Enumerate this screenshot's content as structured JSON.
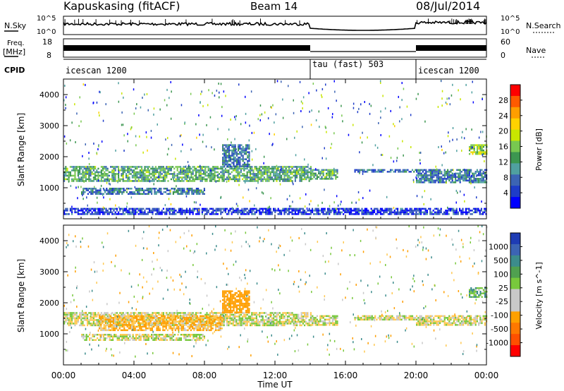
{
  "header": {
    "station": "Kapuskasing (fitACF)",
    "beam": "Beam 14",
    "date": "08/Jul/2014"
  },
  "strip_panels": {
    "nsky": {
      "label": "N.Sky",
      "left_ticks": [
        "10^5",
        "10^0"
      ],
      "right_label": "N.Search",
      "right_ticks": [
        "10^5",
        "10^0"
      ]
    },
    "freq": {
      "label_line1": "Freq.",
      "label_line2": "[MHz]",
      "left_ticks": [
        "18",
        "8"
      ],
      "right_label": "Nave",
      "right_ticks": [
        "60",
        "0"
      ]
    },
    "cpid": {
      "label": "CPID",
      "segments": [
        {
          "label": "icescan 1200",
          "start_hour": 0,
          "end_hour": 14
        },
        {
          "label": "tau (fast) 503",
          "start_hour": 14,
          "end_hour": 20
        },
        {
          "label": "icescan 1200",
          "start_hour": 20,
          "end_hour": 24
        }
      ]
    }
  },
  "power_panel": {
    "ylabel": "Slant Range [km]",
    "yticks": [
      "4000",
      "3000",
      "2000",
      "1000"
    ],
    "colorbar_label": "Power [dB]",
    "colorbar_ticks": [
      "28",
      "24",
      "20",
      "16",
      "12",
      "8",
      "4"
    ],
    "colorbar_colors": [
      "#ff0000",
      "#ff5a00",
      "#ff9e00",
      "#ffd200",
      "#c8e600",
      "#78c850",
      "#3c9650",
      "#50a0a0",
      "#3c64b4",
      "#1e3cc8",
      "#0000ff"
    ]
  },
  "velocity_panel": {
    "ylabel": "Slant Range [km]",
    "yticks": [
      "4000",
      "3000",
      "2000",
      "1000"
    ],
    "colorbar_label": "Velocity [m s^-1]",
    "colorbar_ticks": [
      "1000",
      "500",
      "100",
      "25",
      "-25",
      "-100",
      "-500",
      "-1000"
    ],
    "colorbar_colors": [
      "#1e3cb4",
      "#3c64b4",
      "#3c8c8c",
      "#50a050",
      "#78c83c",
      "#c8c8c8",
      "#c8c8c8",
      "#ffa000",
      "#ff7800",
      "#ff5000",
      "#ff0000"
    ]
  },
  "x_axis": {
    "label": "Time UT",
    "ticks": [
      "00:00",
      "04:00",
      "08:00",
      "12:00",
      "16:00",
      "20:00",
      "00:00"
    ]
  },
  "chart_data": [
    {
      "type": "heatmap",
      "title": "Power [dB]",
      "xlabel": "Time UT",
      "ylabel": "Slant Range [km]",
      "x_range_hours": [
        0,
        24
      ],
      "ylim": [
        0,
        4500
      ],
      "color_range": [
        0,
        30
      ],
      "bands": [
        {
          "start_hour": 0,
          "end_hour": 14,
          "range_min_km": 1200,
          "range_max_km": 1700,
          "power_db": 12
        },
        {
          "start_hour": 1,
          "end_hour": 8,
          "range_min_km": 800,
          "range_max_km": 1000,
          "power_db": 8
        },
        {
          "start_hour": 9,
          "end_hour": 10.5,
          "range_min_km": 1700,
          "range_max_km": 2400,
          "power_db": 8
        },
        {
          "start_hour": 14,
          "end_hour": 15.5,
          "range_min_km": 1300,
          "range_max_km": 1600,
          "power_db": 12
        },
        {
          "start_hour": 16.5,
          "end_hour": 20,
          "range_min_km": 1500,
          "range_max_km": 1600,
          "power_db": 8
        },
        {
          "start_hour": 20,
          "end_hour": 24,
          "range_min_km": 1200,
          "range_max_km": 1600,
          "power_db": 8
        },
        {
          "start_hour": 23,
          "end_hour": 24,
          "range_min_km": 2100,
          "range_max_km": 2400,
          "power_db": 16
        },
        {
          "start_hour": 0,
          "end_hour": 24,
          "range_min_km": 150,
          "range_max_km": 350,
          "power_db": 4
        }
      ]
    },
    {
      "type": "heatmap",
      "title": "Velocity [m s^-1]",
      "xlabel": "Time UT",
      "ylabel": "Slant Range [km]",
      "x_range_hours": [
        0,
        24
      ],
      "ylim": [
        0,
        4500
      ],
      "color_range": [
        -1000,
        1000
      ],
      "bands": [
        {
          "start_hour": 0,
          "end_hour": 14,
          "range_min_km": 1300,
          "range_max_km": 1700,
          "velocity_ms": 0
        },
        {
          "start_hour": 2,
          "end_hour": 9,
          "range_min_km": 1100,
          "range_max_km": 1600,
          "velocity_ms": -100
        },
        {
          "start_hour": 9,
          "end_hour": 10.5,
          "range_min_km": 1700,
          "range_max_km": 2400,
          "velocity_ms": -300
        },
        {
          "start_hour": 1,
          "end_hour": 8,
          "range_min_km": 800,
          "range_max_km": 1000,
          "velocity_ms": 0
        },
        {
          "start_hour": 14,
          "end_hour": 15.5,
          "range_min_km": 1300,
          "range_max_km": 1600,
          "velocity_ms": 0
        },
        {
          "start_hour": 16.5,
          "end_hour": 20,
          "range_min_km": 1450,
          "range_max_km": 1600,
          "velocity_ms": 0
        },
        {
          "start_hour": 20,
          "end_hour": 24,
          "range_min_km": 1300,
          "range_max_km": 1600,
          "velocity_ms": 0
        },
        {
          "start_hour": 23,
          "end_hour": 24,
          "range_min_km": 2200,
          "range_max_km": 2500,
          "velocity_ms": 100
        }
      ]
    }
  ]
}
